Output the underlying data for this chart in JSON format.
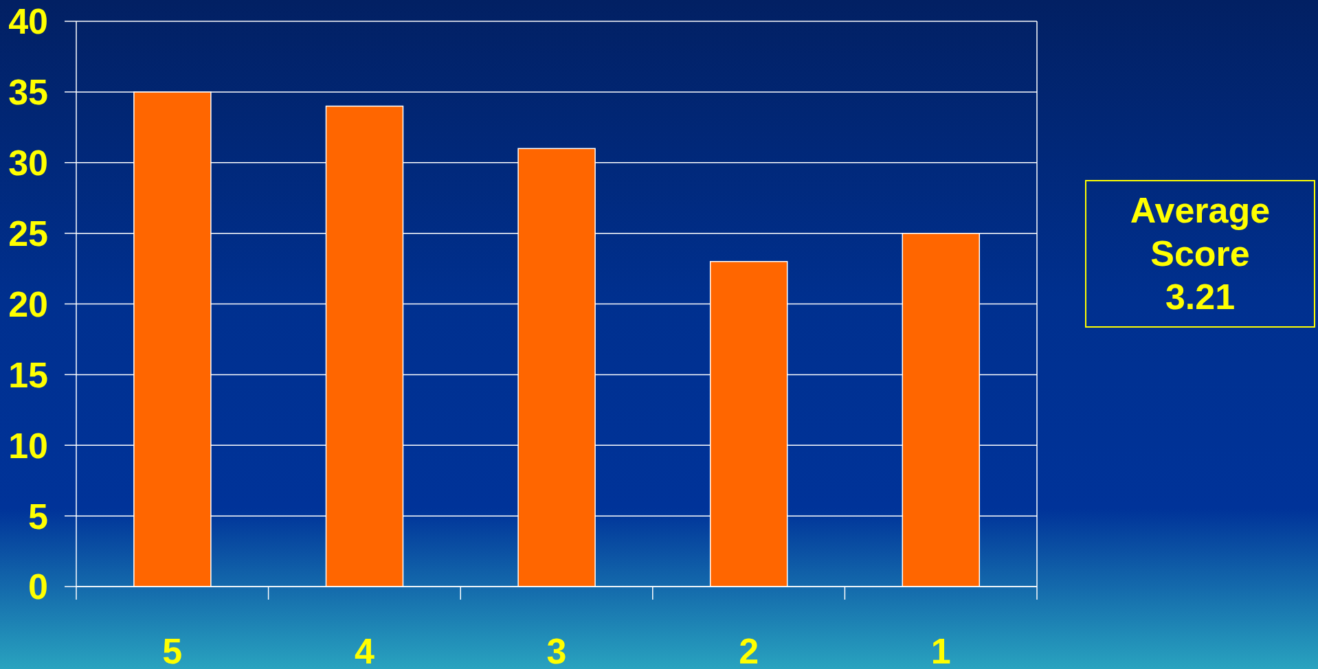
{
  "chart_data": {
    "type": "bar",
    "categories": [
      "5",
      "4",
      "3",
      "2",
      "1"
    ],
    "values": [
      35,
      34,
      31,
      23,
      25
    ],
    "color": "#ff6600",
    "ylim": [
      0,
      40
    ],
    "yticks": [
      0,
      5,
      10,
      15,
      20,
      25,
      30,
      35,
      40
    ],
    "grid": "y",
    "annotations": [
      "Average\nScore\n3.21"
    ]
  }
}
